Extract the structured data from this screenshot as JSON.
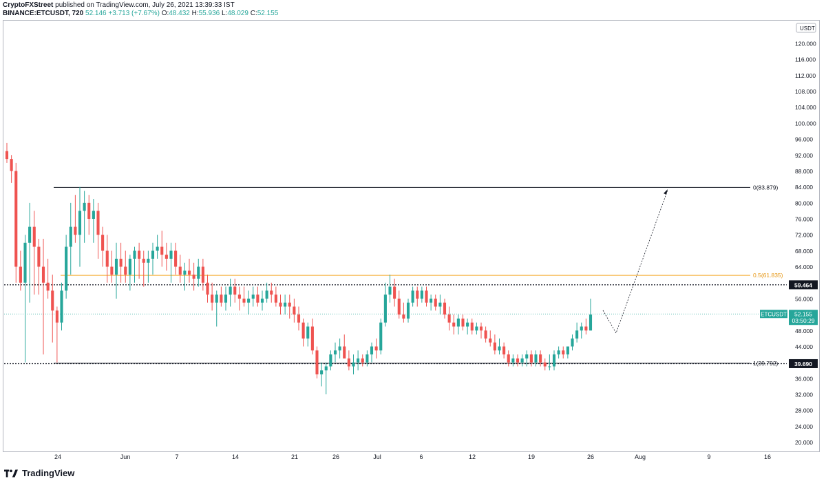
{
  "header": {
    "author": "CryptoFXStreet",
    "published": "published on TradingView.com, July 26, 2021 13:39:33 IST",
    "symbol": "BINANCE:ETCUSDT, 720",
    "last": "52.146",
    "change": "+3.713 (+7.67%)",
    "open_label": "O:",
    "open": "48.432",
    "high_label": "H:",
    "high": "55.936",
    "low_label": "L:",
    "low": "48.029",
    "close_label": "C:",
    "close": "52.155"
  },
  "footer": {
    "brand": "TradingView"
  },
  "chart_data": {
    "type": "candlestick",
    "symbol": "ETCUSDT",
    "currency": "USDT",
    "ylim": [
      18,
      124
    ],
    "y_ticks": [
      "20.000",
      "24.000",
      "28.000",
      "32.000",
      "36.000",
      "40.000",
      "44.000",
      "48.000",
      "52.000",
      "56.000",
      "60.000",
      "64.000",
      "68.000",
      "72.000",
      "76.000",
      "80.000",
      "84.000",
      "88.000",
      "92.000",
      "96.000",
      "100.000",
      "104.000",
      "108.000",
      "112.000",
      "116.000",
      "120.000"
    ],
    "x_ticks": [
      "24",
      "Jun",
      "7",
      "14",
      "21",
      "26",
      "Jul",
      "6",
      "12",
      "19",
      "26",
      "Aug",
      "9",
      "16"
    ],
    "colors": {
      "up": "#26a69a",
      "down": "#ef5350",
      "fib": "#f5a623",
      "line": "#131722"
    },
    "price_badges": [
      {
        "label": "59.464",
        "value": 59.464
      },
      {
        "label": "39.690",
        "value": 39.69
      }
    ],
    "last_price": {
      "symbol": "ETCUSDT",
      "label": "52.155",
      "countdown": "03:50:29",
      "value": 52.155
    },
    "fib_levels": [
      {
        "label": "0(83.879)",
        "value": 83.879
      },
      {
        "label": "0.5(61.835)",
        "value": 61.835
      },
      {
        "label": "1(39.792)",
        "value": 39.792
      }
    ],
    "candles": [
      [
        93,
        95,
        90,
        91
      ],
      [
        91,
        92,
        85,
        88
      ],
      [
        88,
        90,
        60,
        64
      ],
      [
        64,
        68,
        58,
        60
      ],
      [
        60,
        72,
        40,
        70
      ],
      [
        70,
        80,
        55,
        74
      ],
      [
        74,
        78,
        57,
        69
      ],
      [
        69,
        71,
        57,
        64
      ],
      [
        64,
        71,
        42,
        60
      ],
      [
        60,
        66,
        56,
        58
      ],
      [
        58,
        62,
        45,
        53
      ],
      [
        53,
        54,
        40,
        50
      ],
      [
        50,
        60,
        48,
        58
      ],
      [
        58,
        72,
        56,
        69
      ],
      [
        69,
        80,
        62,
        74
      ],
      [
        74,
        82,
        70,
        72
      ],
      [
        72,
        84,
        64,
        78
      ],
      [
        78,
        83,
        70,
        80
      ],
      [
        80,
        82,
        72,
        76
      ],
      [
        76,
        81,
        70,
        78
      ],
      [
        78,
        80,
        66,
        72
      ],
      [
        72,
        74,
        64,
        68
      ],
      [
        68,
        72,
        60,
        64
      ],
      [
        64,
        68,
        60,
        62
      ],
      [
        62,
        70,
        56,
        66
      ],
      [
        66,
        70,
        60,
        64
      ],
      [
        64,
        68,
        60,
        62
      ],
      [
        62,
        67,
        58,
        66
      ],
      [
        66,
        69,
        60,
        68
      ],
      [
        68,
        70,
        61,
        66
      ],
      [
        66,
        68,
        59,
        65
      ],
      [
        65,
        68,
        60,
        66
      ],
      [
        66,
        70,
        62,
        68
      ],
      [
        68,
        72,
        66,
        69
      ],
      [
        69,
        73,
        64,
        67
      ],
      [
        67,
        70,
        63,
        66
      ],
      [
        66,
        70,
        60,
        68
      ],
      [
        68,
        70,
        62,
        64
      ],
      [
        64,
        67,
        60,
        62
      ],
      [
        62,
        65,
        58,
        63
      ],
      [
        63,
        66,
        60,
        62
      ],
      [
        62,
        65,
        58,
        61
      ],
      [
        61,
        66,
        59,
        64
      ],
      [
        64,
        66,
        58,
        60
      ],
      [
        60,
        62,
        55,
        57
      ],
      [
        57,
        60,
        53,
        55
      ],
      [
        55,
        58,
        49,
        57
      ],
      [
        57,
        59,
        54,
        55
      ],
      [
        55,
        59,
        53,
        57
      ],
      [
        57,
        61,
        54,
        59
      ],
      [
        59,
        61,
        55,
        57
      ],
      [
        57,
        59,
        53,
        56
      ],
      [
        56,
        59,
        54,
        55
      ],
      [
        55,
        58,
        52,
        56
      ],
      [
        56,
        59,
        54,
        57
      ],
      [
        57,
        59,
        54,
        55
      ],
      [
        55,
        58,
        53,
        56
      ],
      [
        56,
        60,
        55,
        58
      ],
      [
        58,
        60,
        55,
        57
      ],
      [
        57,
        59,
        54,
        55
      ],
      [
        55,
        57,
        52,
        54
      ],
      [
        54,
        57,
        52,
        55
      ],
      [
        55,
        57,
        51,
        54
      ],
      [
        54,
        56,
        50,
        52
      ],
      [
        52,
        54,
        48,
        50
      ],
      [
        50,
        51,
        44,
        46
      ],
      [
        46,
        50,
        44,
        49
      ],
      [
        49,
        51,
        42,
        43
      ],
      [
        43,
        44,
        36,
        37
      ],
      [
        37,
        40,
        34,
        38
      ],
      [
        38,
        40,
        32,
        39
      ],
      [
        39,
        43,
        38,
        42
      ],
      [
        42,
        45,
        40,
        43
      ],
      [
        43,
        46,
        41,
        44
      ],
      [
        44,
        47,
        42,
        41
      ],
      [
        41,
        43,
        38,
        39
      ],
      [
        39,
        42,
        37,
        40
      ],
      [
        40,
        43,
        38,
        41
      ],
      [
        41,
        42,
        39,
        40
      ],
      [
        40,
        43,
        39,
        42
      ],
      [
        42,
        45,
        40,
        44
      ],
      [
        44,
        46,
        41,
        43
      ],
      [
        43,
        51,
        42,
        50
      ],
      [
        50,
        60,
        49,
        57
      ],
      [
        57,
        62,
        55,
        59
      ],
      [
        59,
        61,
        54,
        56
      ],
      [
        56,
        58,
        51,
        52
      ],
      [
        52,
        55,
        50,
        51
      ],
      [
        51,
        56,
        50,
        55
      ],
      [
        55,
        59,
        54,
        58
      ],
      [
        58,
        59,
        54,
        56
      ],
      [
        56,
        59,
        55,
        58
      ],
      [
        58,
        59,
        54,
        55
      ],
      [
        55,
        57,
        53,
        56
      ],
      [
        56,
        57,
        53,
        54
      ],
      [
        54,
        57,
        52,
        55
      ],
      [
        55,
        56,
        51,
        52
      ],
      [
        52,
        54,
        48,
        50
      ],
      [
        50,
        52,
        47,
        49
      ],
      [
        49,
        52,
        47,
        51
      ],
      [
        51,
        52,
        48,
        49
      ],
      [
        49,
        51,
        47,
        50
      ],
      [
        50,
        51,
        47,
        48
      ],
      [
        48,
        50,
        47,
        49
      ],
      [
        49,
        50,
        46,
        48
      ],
      [
        48,
        49,
        45,
        46
      ],
      [
        46,
        48,
        44,
        45
      ],
      [
        45,
        47,
        42,
        43
      ],
      [
        43,
        46,
        42,
        44
      ],
      [
        44,
        45,
        41,
        42
      ],
      [
        42,
        43,
        39,
        40
      ],
      [
        40,
        42,
        39,
        41
      ],
      [
        41,
        42,
        39,
        40
      ],
      [
        40,
        42,
        39,
        41
      ],
      [
        41,
        43,
        39,
        42
      ],
      [
        42,
        43,
        39,
        40
      ],
      [
        40,
        43,
        39,
        42
      ],
      [
        42,
        43,
        39,
        40
      ],
      [
        40,
        41,
        38,
        39
      ],
      [
        39,
        42,
        38,
        39
      ],
      [
        39,
        43,
        38,
        42
      ],
      [
        42,
        44,
        41,
        43
      ],
      [
        43,
        44,
        41,
        42
      ],
      [
        42,
        44,
        41,
        44
      ],
      [
        44,
        47,
        43,
        46
      ],
      [
        46,
        50,
        45,
        48
      ],
      [
        48,
        50,
        46,
        49
      ],
      [
        49,
        51,
        47,
        48
      ],
      [
        48,
        56,
        48,
        52
      ]
    ]
  }
}
